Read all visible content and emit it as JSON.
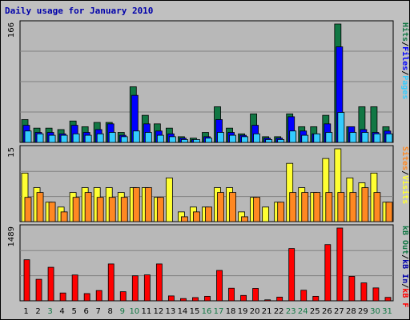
{
  "title": "Daily usage for January 2010",
  "colors": {
    "background": "#c0c0c0",
    "plot": "#b8b8b8",
    "title": "#0000aa",
    "pages": "#33ccff",
    "files": "#0000ff",
    "hits": "#117744",
    "visits": "#ffff33",
    "sites": "#ff8822",
    "kbf": "#ff0000",
    "kbin": "#0000aa",
    "kbout": "#117744",
    "weekend": "#117744",
    "weekday": "#000000"
  },
  "panel_labels": {
    "top": {
      "pages": "Pages",
      "files": "Files",
      "hits": "Hits",
      "sep": "/"
    },
    "mid": {
      "visits": "Visits",
      "sites": "Sites",
      "sep": "/"
    },
    "bottom": {
      "kbf": "kB F",
      "kbin": "kB In",
      "kbout": "kB Out",
      "sep": "/"
    }
  },
  "chart_data": {
    "type": "bar",
    "categories": [
      "1",
      "2",
      "3",
      "4",
      "5",
      "6",
      "7",
      "8",
      "9",
      "10",
      "11",
      "12",
      "13",
      "14",
      "15",
      "16",
      "17",
      "18",
      "19",
      "20",
      "21",
      "22",
      "23",
      "24",
      "25",
      "26",
      "27",
      "28",
      "29",
      "30",
      "31"
    ],
    "weekend_days": [
      "3",
      "9",
      "10",
      "16",
      "17",
      "23",
      "24",
      "30",
      "31"
    ],
    "panels": [
      {
        "name": "hits-files-pages",
        "ymax_label": "166",
        "ymax": 166,
        "series": [
          {
            "name": "Hits",
            "key": "hits",
            "values": [
              32,
              20,
              20,
              18,
              30,
              22,
              28,
              28,
              14,
              78,
              38,
              26,
              20,
              8,
              6,
              14,
              50,
              20,
              12,
              40,
              8,
              8,
              40,
              22,
              22,
              38,
              166,
              22,
              50,
              50,
              22
            ]
          },
          {
            "name": "Files",
            "key": "files",
            "values": [
              24,
              14,
              14,
              12,
              24,
              14,
              18,
              26,
              10,
              66,
              26,
              16,
              12,
              6,
              4,
              8,
              32,
              14,
              10,
              24,
              6,
              6,
              36,
              16,
              12,
              26,
              134,
              22,
              18,
              14,
              16
            ]
          },
          {
            "name": "Pages",
            "key": "pages",
            "values": [
              16,
              12,
              10,
              10,
              12,
              10,
              12,
              14,
              8,
              16,
              14,
              10,
              8,
              4,
              4,
              6,
              14,
              10,
              8,
              12,
              4,
              4,
              16,
              10,
              12,
              14,
              42,
              14,
              14,
              12,
              12
            ]
          }
        ]
      },
      {
        "name": "visits-sites",
        "ymax_label": "15",
        "ymax": 15,
        "series": [
          {
            "name": "Visits",
            "key": "visits",
            "values": [
              10,
              7,
              4,
              3,
              6,
              7,
              7,
              7,
              6,
              7,
              7,
              5,
              9,
              2,
              3,
              3,
              7,
              7,
              2,
              5,
              3,
              4,
              12,
              7,
              6,
              13,
              15,
              9,
              8,
              10,
              4
            ]
          },
          {
            "name": "Sites",
            "key": "sites",
            "values": [
              5,
              6,
              4,
              2,
              5,
              6,
              5,
              5,
              5,
              7,
              7,
              5,
              0,
              1,
              2,
              3,
              6,
              6,
              1,
              5,
              0,
              4,
              6,
              6,
              6,
              6,
              6,
              6,
              7,
              6,
              4
            ]
          }
        ]
      },
      {
        "name": "kbytes",
        "ymax_label": "1489",
        "ymax": 1489,
        "series": [
          {
            "name": "kB F",
            "key": "kbf",
            "values": [
              840,
              440,
              686,
              160,
              528,
              148,
              210,
              754,
              186,
              512,
              530,
              754,
              100,
              46,
              66,
              92,
              621,
              258,
              110,
              254,
              20,
              76,
              1070,
              216,
              92,
              1150,
              1489,
              500,
              366,
              264,
              70
            ]
          }
        ]
      }
    ]
  }
}
